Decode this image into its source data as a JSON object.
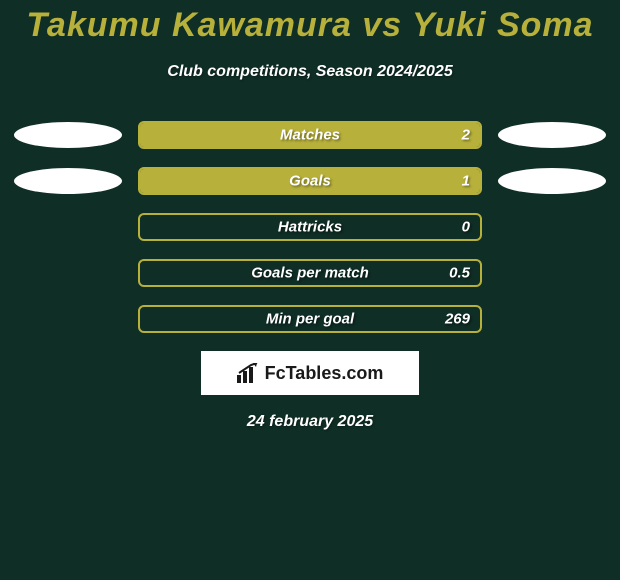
{
  "theme": {
    "background": "#0f2e25",
    "title_color": "#b7b03b",
    "subtitle_color": "#ffffff",
    "bar_border_color": "#b7b03b",
    "bar_fill_color": "#b7b03b",
    "bar_text_color": "#ffffff",
    "ellipse_color": "#ffffff",
    "logo_bg": "#ffffff",
    "logo_text": "#1a1a1a",
    "date_color": "#ffffff"
  },
  "typography": {
    "title_fontsize": 34,
    "subtitle_fontsize": 16,
    "bar_label_fontsize": 15,
    "date_fontsize": 16
  },
  "title": "Takumu Kawamura vs Yuki Soma",
  "subtitle": "Club competitions, Season 2024/2025",
  "rows": [
    {
      "label": "Matches",
      "value": "2",
      "fill_pct": 100,
      "left_ellipse": true,
      "right_ellipse": true
    },
    {
      "label": "Goals",
      "value": "1",
      "fill_pct": 100,
      "left_ellipse": true,
      "right_ellipse": true
    },
    {
      "label": "Hattricks",
      "value": "0",
      "fill_pct": 0,
      "left_ellipse": false,
      "right_ellipse": false
    },
    {
      "label": "Goals per match",
      "value": "0.5",
      "fill_pct": 0,
      "left_ellipse": false,
      "right_ellipse": false
    },
    {
      "label": "Min per goal",
      "value": "269",
      "fill_pct": 0,
      "left_ellipse": false,
      "right_ellipse": false
    }
  ],
  "logo_text": "FcTables.com",
  "date": "24 february 2025"
}
